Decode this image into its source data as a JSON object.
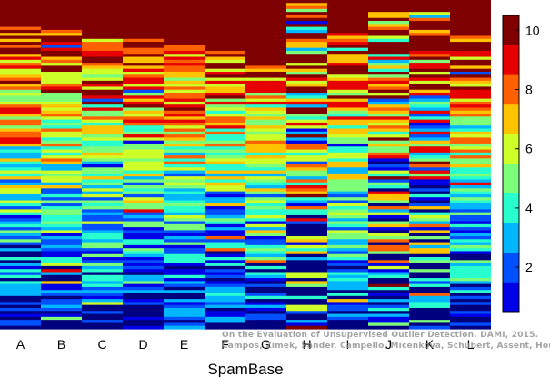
{
  "chart_data": {
    "type": "heatmap",
    "title": "",
    "xlabel": "SpamBase",
    "ylabel": "",
    "categories": [
      "A",
      "B",
      "C",
      "D",
      "E",
      "F",
      "G",
      "H",
      "I",
      "J",
      "K",
      "L"
    ],
    "colorbar": {
      "min": 0.5,
      "max": 10.5,
      "ticks": [
        2,
        4,
        6,
        8,
        10
      ],
      "levels": 10,
      "colors": [
        "#00007f",
        "#0000e6",
        "#0050ff",
        "#00b6ff",
        "#29ffce",
        "#7dff7a",
        "#ceff29",
        "#ffc300",
        "#ff6100",
        "#e60000",
        "#7f0000"
      ]
    },
    "columns": [
      {
        "name": "A",
        "top_rank": 10,
        "top_extent": 0.08
      },
      {
        "name": "B",
        "top_rank": 10,
        "top_extent": 0.09
      },
      {
        "name": "C",
        "top_rank": 10,
        "top_extent": 0.12
      },
      {
        "name": "D",
        "top_rank": 10,
        "top_extent": 0.12
      },
      {
        "name": "E",
        "top_rank": 10,
        "top_extent": 0.14
      },
      {
        "name": "F",
        "top_rank": 10,
        "top_extent": 0.15
      },
      {
        "name": "G",
        "top_rank": 10,
        "top_extent": 0.2
      },
      {
        "name": "H",
        "top_rank": 10,
        "top_extent": 0.01
      },
      {
        "name": "I",
        "top_rank": 10,
        "top_extent": 0.1
      },
      {
        "name": "J",
        "top_rank": 10,
        "top_extent": 0.01
      },
      {
        "name": "K",
        "top_rank": 10,
        "top_extent": 0.03
      },
      {
        "name": "L",
        "top_rank": 10,
        "top_extent": 0.1
      }
    ]
  },
  "watermark": {
    "line1": "On the Evaluation of Unsupervised Outlier Detection. DAMI, 2015.",
    "line2": "Campos, Zimek, Sander, Campello, Micenková, Schubert, Assent, Houle"
  }
}
